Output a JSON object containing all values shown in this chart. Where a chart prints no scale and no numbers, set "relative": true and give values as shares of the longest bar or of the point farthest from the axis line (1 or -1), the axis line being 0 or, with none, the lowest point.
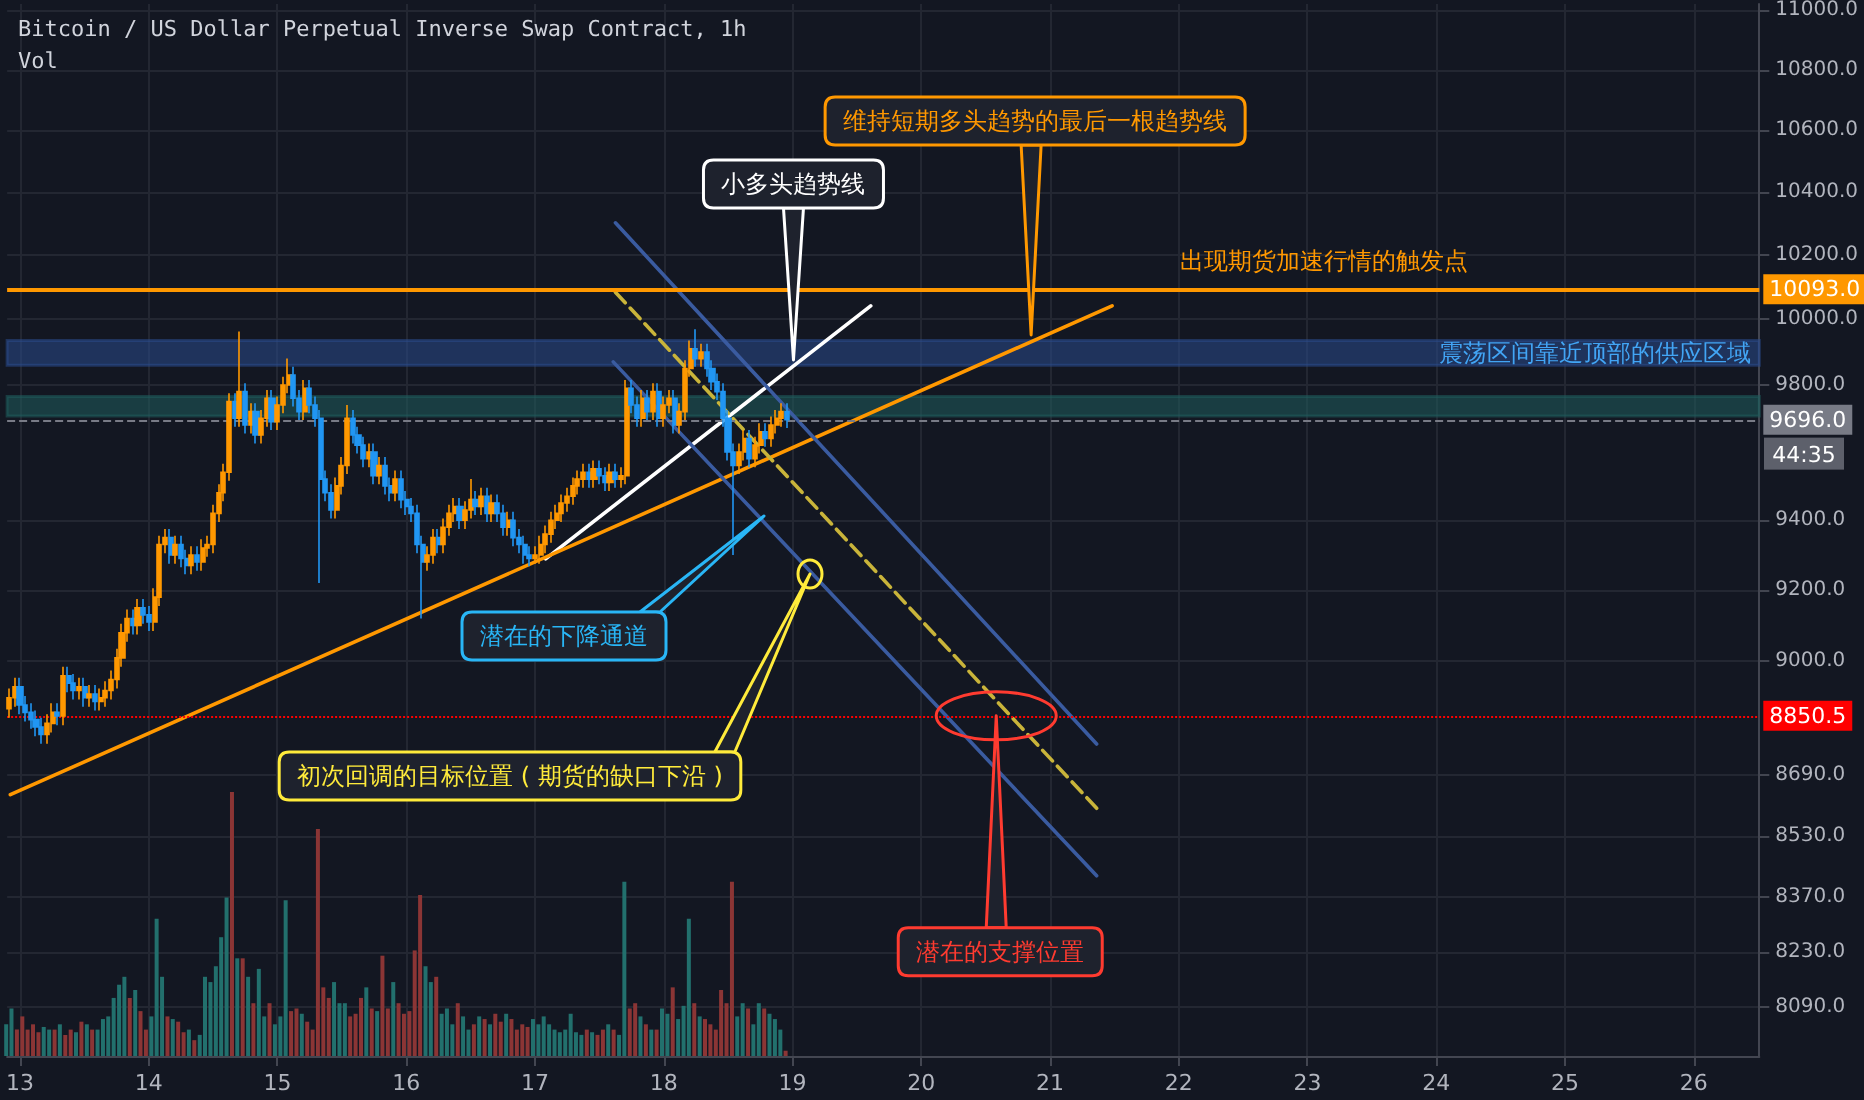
{
  "chart_data": [
    {
      "type": "candlestick",
      "title": "Bitcoin / US Dollar Perpetual Inverse Swap Contract, 1h",
      "log": true,
      "grid": true,
      "marker": "none",
      "xlim": [
        12.9,
        26.51
      ],
      "xticks": [
        13,
        14,
        15,
        16,
        17,
        18,
        19,
        20,
        21,
        22,
        23,
        24,
        25,
        26
      ],
      "ylim": [
        7970,
        11020
      ],
      "yticks": [
        {
          "value": 8090,
          "label": "8090.0"
        },
        {
          "value": 8230,
          "label": "8230.0"
        },
        {
          "value": 8370,
          "label": "8370.0"
        },
        {
          "value": 8530,
          "label": "8530.0"
        },
        {
          "value": 8690,
          "label": "8690.0"
        },
        {
          "value": 9000,
          "label": "9000.0"
        },
        {
          "value": 9200,
          "label": "9200.0"
        },
        {
          "value": 9400,
          "label": "9400.0"
        },
        {
          "value": 9800,
          "label": "9800.0"
        },
        {
          "value": 10000,
          "label": "10000.0"
        },
        {
          "value": 10200,
          "label": "10200.0"
        },
        {
          "value": 10400,
          "label": "10400.0"
        },
        {
          "value": 10600,
          "label": "10600.0"
        },
        {
          "value": 10800,
          "label": "10800.0"
        },
        {
          "value": 11000,
          "label": "11000.0"
        }
      ],
      "series": [
        {
          "type": "candlestick",
          "x": [
            12.917,
            12.958,
            13,
            13.042,
            13.083,
            13.125,
            13.167,
            13.208,
            13.25,
            13.292,
            13.333,
            13.375,
            13.417,
            13.458,
            13.5,
            13.542,
            13.583,
            13.625,
            13.667,
            13.708,
            13.75,
            13.792,
            13.833,
            13.875,
            13.917,
            13.958,
            14,
            14.042,
            14.083,
            14.125,
            14.167,
            14.208,
            14.25,
            14.292,
            14.333,
            14.375,
            14.417,
            14.458,
            14.5,
            14.542,
            14.583,
            14.625,
            14.667,
            14.708,
            14.75,
            14.792,
            14.833,
            14.875,
            14.917,
            14.958,
            15,
            15.042,
            15.083,
            15.125,
            15.167,
            15.208,
            15.25,
            15.292,
            15.333,
            15.375,
            15.417,
            15.458,
            15.5,
            15.542,
            15.583,
            15.625,
            15.667,
            15.708,
            15.75,
            15.792,
            15.833,
            15.875,
            15.917,
            15.958,
            16,
            16.042,
            16.083,
            16.125,
            16.167,
            16.208,
            16.25,
            16.292,
            16.333,
            16.375,
            16.417,
            16.458,
            16.5,
            16.542,
            16.583,
            16.625,
            16.667,
            16.708,
            16.75,
            16.792,
            16.833,
            16.875,
            16.917,
            16.958,
            17,
            17.042,
            17.083,
            17.125,
            17.167,
            17.208,
            17.25,
            17.292,
            17.333,
            17.375,
            17.417,
            17.458,
            17.5,
            17.542,
            17.583,
            17.625,
            17.667,
            17.708,
            17.75,
            17.792,
            17.833,
            17.875,
            17.917,
            17.958,
            18,
            18.042,
            18.083,
            18.125,
            18.167,
            18.208,
            18.25,
            18.292,
            18.333,
            18.375,
            18.417,
            18.458,
            18.5,
            18.542,
            18.583,
            18.625,
            18.667,
            18.708,
            18.75,
            18.792,
            18.833,
            18.875,
            18.917,
            18.958
          ],
          "ohlc": [
            [
              8870,
              8925,
              8845,
              8900
            ],
            [
              8900,
              8955,
              8875,
              8930
            ],
            [
              8930,
              8955,
              8855,
              8880
            ],
            [
              8880,
              8905,
              8835,
              8860
            ],
            [
              8860,
              8885,
              8815,
              8840
            ],
            [
              8840,
              8865,
              8795,
              8820
            ],
            [
              8820,
              8845,
              8775,
              8800
            ],
            [
              8800,
              8855,
              8775,
              8830
            ],
            [
              8830,
              8885,
              8805,
              8860
            ],
            [
              8860,
              8885,
              8825,
              8850
            ],
            [
              8850,
              8985,
              8825,
              8960
            ],
            [
              8960,
              8985,
              8915,
              8940
            ],
            [
              8940,
              8965,
              8895,
              8920
            ],
            [
              8920,
              8955,
              8895,
              8930
            ],
            [
              8930,
              8955,
              8875,
              8900
            ],
            [
              8900,
              8935,
              8875,
              8910
            ],
            [
              8910,
              8935,
              8865,
              8890
            ],
            [
              8890,
              8925,
              8865,
              8900
            ],
            [
              8900,
              8945,
              8875,
              8920
            ],
            [
              8920,
              8975,
              8895,
              8950
            ],
            [
              8950,
              9035,
              8925,
              9010
            ],
            [
              9010,
              9105,
              8985,
              9080
            ],
            [
              9080,
              9145,
              9055,
              9120
            ],
            [
              9120,
              9145,
              9075,
              9100
            ],
            [
              9100,
              9175,
              9075,
              9150
            ],
            [
              9150,
              9175,
              9105,
              9130
            ],
            [
              9130,
              9155,
              9085,
              9110
            ],
            [
              9110,
              9205,
              9085,
              9180
            ],
            [
              9180,
              9355,
              9155,
              9330
            ],
            [
              9330,
              9375,
              9305,
              9350
            ],
            [
              9350,
              9375,
              9275,
              9300
            ],
            [
              9300,
              9355,
              9275,
              9330
            ],
            [
              9330,
              9355,
              9265,
              9290
            ],
            [
              9290,
              9315,
              9245,
              9270
            ],
            [
              9270,
              9325,
              9245,
              9300
            ],
            [
              9300,
              9325,
              9255,
              9280
            ],
            [
              9280,
              9345,
              9255,
              9320
            ],
            [
              9320,
              9355,
              9295,
              9330
            ],
            [
              9330,
              9445,
              9305,
              9420
            ],
            [
              9420,
              9505,
              9395,
              9480
            ],
            [
              9480,
              9565,
              9455,
              9540
            ],
            [
              9540,
              9775,
              9515,
              9750
            ],
            [
              9750,
              9775,
              9675,
              9700
            ],
            [
              9700,
              9963,
              9675,
              9780
            ],
            [
              9780,
              9805,
              9655,
              9680
            ],
            [
              9680,
              9745,
              9655,
              9720
            ],
            [
              9720,
              9745,
              9625,
              9650
            ],
            [
              9650,
              9725,
              9625,
              9700
            ],
            [
              9700,
              9785,
              9675,
              9760
            ],
            [
              9760,
              9785,
              9665,
              9690
            ],
            [
              9690,
              9765,
              9665,
              9740
            ],
            [
              9740,
              9825,
              9715,
              9800
            ],
            [
              9800,
              9880,
              9775,
              9830
            ],
            [
              9830,
              9855,
              9735,
              9760
            ],
            [
              9760,
              9785,
              9695,
              9720
            ],
            [
              9720,
              9815,
              9695,
              9790
            ],
            [
              9790,
              9815,
              9715,
              9740
            ],
            [
              9740,
              9765,
              9675,
              9700
            ],
            [
              9700,
              9725,
              9220,
              9520
            ],
            [
              9520,
              9545,
              9455,
              9480
            ],
            [
              9480,
              9505,
              9405,
              9430
            ],
            [
              9430,
              9525,
              9405,
              9500
            ],
            [
              9500,
              9585,
              9475,
              9560
            ],
            [
              9560,
              9740,
              9535,
              9700
            ],
            [
              9700,
              9725,
              9625,
              9650
            ],
            [
              9650,
              9675,
              9595,
              9620
            ],
            [
              9620,
              9645,
              9555,
              9580
            ],
            [
              9580,
              9625,
              9555,
              9600
            ],
            [
              9600,
              9625,
              9505,
              9530
            ],
            [
              9530,
              9585,
              9505,
              9560
            ],
            [
              9560,
              9585,
              9475,
              9500
            ],
            [
              9500,
              9525,
              9455,
              9480
            ],
            [
              9480,
              9545,
              9455,
              9520
            ],
            [
              9520,
              9545,
              9435,
              9460
            ],
            [
              9460,
              9485,
              9415,
              9440
            ],
            [
              9440,
              9465,
              9395,
              9420
            ],
            [
              9420,
              9445,
              9305,
              9330
            ],
            [
              9330,
              9355,
              9120,
              9280
            ],
            [
              9280,
              9325,
              9255,
              9300
            ],
            [
              9300,
              9375,
              9275,
              9350
            ],
            [
              9350,
              9375,
              9305,
              9330
            ],
            [
              9330,
              9405,
              9305,
              9380
            ],
            [
              9380,
              9445,
              9355,
              9420
            ],
            [
              9420,
              9465,
              9395,
              9440
            ],
            [
              9440,
              9465,
              9375,
              9400
            ],
            [
              9400,
              9455,
              9375,
              9430
            ],
            [
              9430,
              9520,
              9405,
              9460
            ],
            [
              9460,
              9485,
              9415,
              9440
            ],
            [
              9440,
              9495,
              9415,
              9470
            ],
            [
              9470,
              9495,
              9395,
              9420
            ],
            [
              9420,
              9475,
              9395,
              9450
            ],
            [
              9450,
              9475,
              9395,
              9420
            ],
            [
              9420,
              9445,
              9355,
              9380
            ],
            [
              9380,
              9425,
              9355,
              9400
            ],
            [
              9400,
              9425,
              9325,
              9350
            ],
            [
              9350,
              9375,
              9305,
              9330
            ],
            [
              9330,
              9355,
              9275,
              9300
            ],
            [
              9300,
              9325,
              9268,
              9290
            ],
            [
              9290,
              9325,
              9275,
              9300
            ],
            [
              9300,
              9355,
              9275,
              9330
            ],
            [
              9330,
              9385,
              9305,
              9360
            ],
            [
              9360,
              9425,
              9335,
              9400
            ],
            [
              9400,
              9445,
              9375,
              9420
            ],
            [
              9420,
              9475,
              9395,
              9450
            ],
            [
              9450,
              9495,
              9425,
              9470
            ],
            [
              9470,
              9525,
              9445,
              9500
            ],
            [
              9500,
              9545,
              9475,
              9520
            ],
            [
              9520,
              9565,
              9495,
              9540
            ],
            [
              9540,
              9565,
              9495,
              9520
            ],
            [
              9520,
              9575,
              9495,
              9550
            ],
            [
              9550,
              9575,
              9505,
              9530
            ],
            [
              9530,
              9555,
              9485,
              9510
            ],
            [
              9510,
              9565,
              9485,
              9540
            ],
            [
              9540,
              9565,
              9495,
              9520
            ],
            [
              9520,
              9555,
              9495,
              9530
            ],
            [
              9530,
              9815,
              9505,
              9790
            ],
            [
              9790,
              9815,
              9715,
              9740
            ],
            [
              9740,
              9765,
              9675,
              9700
            ],
            [
              9700,
              9785,
              9675,
              9760
            ],
            [
              9760,
              9785,
              9695,
              9720
            ],
            [
              9720,
              9805,
              9695,
              9780
            ],
            [
              9780,
              9805,
              9675,
              9700
            ],
            [
              9700,
              9765,
              9675,
              9740
            ],
            [
              9740,
              9785,
              9715,
              9760
            ],
            [
              9760,
              9785,
              9655,
              9680
            ],
            [
              9680,
              9745,
              9655,
              9720
            ],
            [
              9720,
              9875,
              9695,
              9850
            ],
            [
              9850,
              9935,
              9825,
              9910
            ],
            [
              9910,
              9970,
              9855,
              9880
            ],
            [
              9880,
              9925,
              9855,
              9900
            ],
            [
              9900,
              9925,
              9825,
              9850
            ],
            [
              9850,
              9875,
              9785,
              9810
            ],
            [
              9810,
              9835,
              9755,
              9780
            ],
            [
              9780,
              9805,
              9675,
              9700
            ],
            [
              9700,
              9725,
              9575,
              9600
            ],
            [
              9600,
              9625,
              9300,
              9560
            ],
            [
              9560,
              9625,
              9535,
              9600
            ],
            [
              9600,
              9665,
              9575,
              9640
            ],
            [
              9640,
              9665,
              9555,
              9580
            ],
            [
              9580,
              9645,
              9555,
              9620
            ],
            [
              9620,
              9685,
              9595,
              9660
            ],
            [
              9660,
              9685,
              9615,
              9640
            ],
            [
              9640,
              9705,
              9615,
              9680
            ],
            [
              9680,
              9725,
              9655,
              9700
            ],
            [
              9700,
              9745,
              9675,
              9720
            ],
            [
              9720,
              9745,
              9671,
              9696
            ]
          ],
          "colors": [
            "#ff9800",
            "#ff9800",
            "#2196f3",
            "#2196f3",
            "#2196f3",
            "#2196f3",
            "#2196f3",
            "#ff9800",
            "#ff9800",
            "#2196f3",
            "#ff9800",
            "#2196f3",
            "#2196f3",
            "#ff9800",
            "#2196f3",
            "#ff9800",
            "#2196f3",
            "#ff9800",
            "#ff9800",
            "#ff9800",
            "#ff9800",
            "#ff9800",
            "#ff9800",
            "#2196f3",
            "#ff9800",
            "#2196f3",
            "#2196f3",
            "#ff9800",
            "#ff9800",
            "#ff9800",
            "#2196f3",
            "#ff9800",
            "#2196f3",
            "#2196f3",
            "#ff9800",
            "#2196f3",
            "#ff9800",
            "#ff9800",
            "#ff9800",
            "#ff9800",
            "#ff9800",
            "#ff9800",
            "#2196f3",
            "#ff9800",
            "#2196f3",
            "#ff9800",
            "#2196f3",
            "#ff9800",
            "#ff9800",
            "#2196f3",
            "#ff9800",
            "#ff9800",
            "#ff9800",
            "#2196f3",
            "#2196f3",
            "#ff9800",
            "#2196f3",
            "#2196f3",
            "#2196f3",
            "#2196f3",
            "#2196f3",
            "#ff9800",
            "#ff9800",
            "#ff9800",
            "#2196f3",
            "#2196f3",
            "#2196f3",
            "#ff9800",
            "#2196f3",
            "#ff9800",
            "#2196f3",
            "#2196f3",
            "#ff9800",
            "#2196f3",
            "#2196f3",
            "#2196f3",
            "#2196f3",
            "#2196f3",
            "#ff9800",
            "#ff9800",
            "#2196f3",
            "#ff9800",
            "#ff9800",
            "#ff9800",
            "#2196f3",
            "#ff9800",
            "#ff9800",
            "#2196f3",
            "#ff9800",
            "#2196f3",
            "#ff9800",
            "#2196f3",
            "#2196f3",
            "#ff9800",
            "#2196f3",
            "#2196f3",
            "#2196f3",
            "#2196f3",
            "#ff9800",
            "#ff9800",
            "#ff9800",
            "#ff9800",
            "#ff9800",
            "#ff9800",
            "#ff9800",
            "#ff9800",
            "#ff9800",
            "#ff9800",
            "#2196f3",
            "#ff9800",
            "#2196f3",
            "#2196f3",
            "#ff9800",
            "#2196f3",
            "#ff9800",
            "#ff9800",
            "#2196f3",
            "#2196f3",
            "#ff9800",
            "#2196f3",
            "#ff9800",
            "#2196f3",
            "#ff9800",
            "#ff9800",
            "#2196f3",
            "#ff9800",
            "#ff9800",
            "#ff9800",
            "#2196f3",
            "#ff9800",
            "#2196f3",
            "#2196f3",
            "#2196f3",
            "#2196f3",
            "#2196f3",
            "#2196f3",
            "#ff9800",
            "#ff9800",
            "#2196f3",
            "#ff9800",
            "#ff9800",
            "#2196f3",
            "#ff9800",
            "#ff9800",
            "#ff9800",
            "#2196f3"
          ]
        },
        {
          "type": "line",
          "x": [
            17.083,
            19.608
          ],
          "values": [
            9289,
            10042
          ],
          "color": "#ffffff"
        },
        {
          "type": "line",
          "x": [
            12.925,
            21.483
          ],
          "values": [
            8638,
            10042
          ],
          "color": "#ff9800"
        },
        {
          "type": "line",
          "x": [
            17.625,
            21.363
          ],
          "values": [
            10302,
            8774
          ],
          "color": "#3a5ba0"
        },
        {
          "type": "line",
          "x": [
            17.608,
            21.363
          ],
          "values": [
            9870,
            8425
          ],
          "color": "#3a5ba0"
        },
        {
          "type": "line",
          "x": [
            17.625,
            21.363
          ],
          "values": [
            10084,
            8602
          ],
          "color": "#c9b43a",
          "line_style": "dashed"
        }
      ],
      "ref_lines": [
        {
          "axis": "y",
          "value": 10093,
          "label": "10093.0",
          "color": "#ff9800",
          "line_style": "solid"
        },
        {
          "axis": "y",
          "value": 9696,
          "label": "9696.0",
          "color": "#787b86",
          "line_style": "dashed"
        },
        {
          "axis": "y",
          "value": 8850.5,
          "label": "8850.5",
          "color": "#ff0000",
          "line_style": "dotted"
        }
      ],
      "bands": [
        {
          "axis": "y",
          "from": 9860,
          "to": 9935,
          "label": "震荡区间靠近顶部的供应区域",
          "color": "#2a4a8c"
        },
        {
          "axis": "y",
          "from": 9707,
          "to": 9765,
          "color": "#1f5c5c"
        }
      ],
      "annotations": [
        {
          "text": "小多头趋势线",
          "x": 19.008,
          "y": 9876
        },
        {
          "text": "维持短期多头趋势的最后一根趋势线",
          "x": 20.854,
          "y": 9952
        },
        {
          "text": "出现期货加速行情的触发点",
          "x": 23.125,
          "y": 10093
        },
        "潜在的下降通道",
        "初次回调的目标位置 ( 期货的缺口下沿 )",
        {
          "text": "潜在的支撑位置",
          "x": 20.583,
          "y": 8850.5
        },
        "44:35"
      ]
    },
    {
      "type": "bar",
      "title": "Vol",
      "relative": true,
      "xlim": [
        12.9,
        26.51
      ],
      "x": [
        12.917,
        12.958,
        13,
        13.042,
        13.083,
        13.125,
        13.167,
        13.208,
        13.25,
        13.292,
        13.333,
        13.375,
        13.417,
        13.458,
        13.5,
        13.542,
        13.583,
        13.625,
        13.667,
        13.708,
        13.75,
        13.792,
        13.833,
        13.875,
        13.917,
        13.958,
        14,
        14.042,
        14.083,
        14.125,
        14.167,
        14.208,
        14.25,
        14.292,
        14.333,
        14.375,
        14.417,
        14.458,
        14.5,
        14.542,
        14.583,
        14.625,
        14.667,
        14.708,
        14.75,
        14.792,
        14.833,
        14.875,
        14.917,
        14.958,
        15,
        15.042,
        15.083,
        15.125,
        15.167,
        15.208,
        15.25,
        15.292,
        15.333,
        15.375,
        15.417,
        15.458,
        15.5,
        15.542,
        15.583,
        15.625,
        15.667,
        15.708,
        15.75,
        15.792,
        15.833,
        15.875,
        15.917,
        15.958,
        16,
        16.042,
        16.083,
        16.125,
        16.167,
        16.208,
        16.25,
        16.292,
        16.333,
        16.375,
        16.417,
        16.458,
        16.5,
        16.542,
        16.583,
        16.625,
        16.667,
        16.708,
        16.75,
        16.792,
        16.833,
        16.875,
        16.917,
        16.958,
        17,
        17.042,
        17.083,
        17.125,
        17.167,
        17.208,
        17.25,
        17.292,
        17.333,
        17.375,
        17.417,
        17.458,
        17.5,
        17.542,
        17.583,
        17.625,
        17.667,
        17.708,
        17.75,
        17.792,
        17.833,
        17.875,
        17.917,
        17.958,
        18,
        18.042,
        18.083,
        18.125,
        18.167,
        18.208,
        18.25,
        18.292,
        18.333,
        18.375,
        18.417,
        18.458,
        18.5,
        18.542,
        18.583,
        18.625,
        18.667,
        18.708,
        18.75,
        18.792,
        18.833,
        18.875,
        18.917,
        18.958
      ],
      "values": [
        0.12,
        0.18,
        0.1,
        0.15,
        0.1,
        0.12,
        0.09,
        0.11,
        0.1,
        0.1,
        0.12,
        0.08,
        0.1,
        0.09,
        0.13,
        0.12,
        0.1,
        0.1,
        0.14,
        0.15,
        0.22,
        0.27,
        0.3,
        0.22,
        0.25,
        0.17,
        0.1,
        0.15,
        0.52,
        0.3,
        0.15,
        0.14,
        0.13,
        0.09,
        0.1,
        0.06,
        0.08,
        0.3,
        0.28,
        0.34,
        0.45,
        0.6,
        1,
        0.37,
        0.37,
        0.3,
        0.2,
        0.33,
        0.15,
        0.2,
        0.12,
        0.15,
        0.59,
        0.17,
        0.18,
        0.16,
        0.13,
        0.1,
        0.86,
        0.26,
        0.22,
        0.28,
        0.2,
        0.2,
        0.15,
        0.16,
        0.22,
        0.26,
        0.18,
        0.17,
        0.38,
        0.18,
        0.28,
        0.2,
        0.16,
        0.17,
        0.4,
        0.61,
        0.34,
        0.28,
        0.3,
        0.16,
        0.18,
        0.12,
        0.2,
        0.15,
        0.1,
        0.12,
        0.15,
        0.14,
        0.12,
        0.16,
        0.13,
        0.16,
        0.14,
        0.1,
        0.12,
        0.11,
        0.14,
        0.12,
        0.15,
        0.12,
        0.1,
        0.09,
        0.1,
        0.16,
        0.09,
        0.08,
        0.1,
        0.09,
        0.08,
        0.1,
        0.12,
        0.1,
        0.08,
        0.66,
        0.18,
        0.2,
        0.15,
        0.12,
        0.1,
        0.1,
        0.18,
        0.16,
        0.26,
        0.14,
        0.19,
        0.52,
        0.2,
        0.15,
        0.14,
        0.12,
        0.1,
        0.25,
        0.2,
        0.66,
        0.15,
        0.2,
        0.18,
        0.12,
        0.2,
        0.18,
        0.16,
        0.14,
        0.1,
        0.02
      ],
      "colors": [
        "#22706d",
        "#22706d",
        "#8b3535",
        "#8b3535",
        "#8b3535",
        "#8b3535",
        "#8b3535",
        "#22706d",
        "#22706d",
        "#8b3535",
        "#22706d",
        "#8b3535",
        "#8b3535",
        "#22706d",
        "#8b3535",
        "#22706d",
        "#8b3535",
        "#22706d",
        "#22706d",
        "#22706d",
        "#22706d",
        "#22706d",
        "#22706d",
        "#8b3535",
        "#22706d",
        "#8b3535",
        "#8b3535",
        "#22706d",
        "#22706d",
        "#22706d",
        "#8b3535",
        "#22706d",
        "#8b3535",
        "#8b3535",
        "#22706d",
        "#8b3535",
        "#22706d",
        "#22706d",
        "#22706d",
        "#22706d",
        "#22706d",
        "#22706d",
        "#8b3535",
        "#22706d",
        "#8b3535",
        "#22706d",
        "#8b3535",
        "#22706d",
        "#22706d",
        "#8b3535",
        "#22706d",
        "#22706d",
        "#22706d",
        "#8b3535",
        "#8b3535",
        "#22706d",
        "#8b3535",
        "#8b3535",
        "#8b3535",
        "#8b3535",
        "#8b3535",
        "#22706d",
        "#22706d",
        "#22706d",
        "#8b3535",
        "#8b3535",
        "#8b3535",
        "#22706d",
        "#8b3535",
        "#22706d",
        "#8b3535",
        "#8b3535",
        "#22706d",
        "#8b3535",
        "#8b3535",
        "#8b3535",
        "#8b3535",
        "#8b3535",
        "#22706d",
        "#22706d",
        "#8b3535",
        "#22706d",
        "#22706d",
        "#22706d",
        "#8b3535",
        "#22706d",
        "#22706d",
        "#8b3535",
        "#22706d",
        "#8b3535",
        "#22706d",
        "#8b3535",
        "#8b3535",
        "#22706d",
        "#8b3535",
        "#8b3535",
        "#8b3535",
        "#8b3535",
        "#22706d",
        "#22706d",
        "#22706d",
        "#22706d",
        "#22706d",
        "#22706d",
        "#22706d",
        "#22706d",
        "#22706d",
        "#22706d",
        "#8b3535",
        "#22706d",
        "#8b3535",
        "#8b3535",
        "#22706d",
        "#8b3535",
        "#22706d",
        "#22706d",
        "#8b3535",
        "#8b3535",
        "#22706d",
        "#8b3535",
        "#22706d",
        "#8b3535",
        "#22706d",
        "#22706d",
        "#8b3535",
        "#22706d",
        "#22706d",
        "#22706d",
        "#8b3535",
        "#22706d",
        "#8b3535",
        "#8b3535",
        "#8b3535",
        "#8b3535",
        "#8b3535",
        "#8b3535",
        "#22706d",
        "#22706d",
        "#8b3535",
        "#22706d",
        "#22706d",
        "#8b3535",
        "#22706d",
        "#22706d",
        "#22706d",
        "#8b3535"
      ]
    }
  ]
}
